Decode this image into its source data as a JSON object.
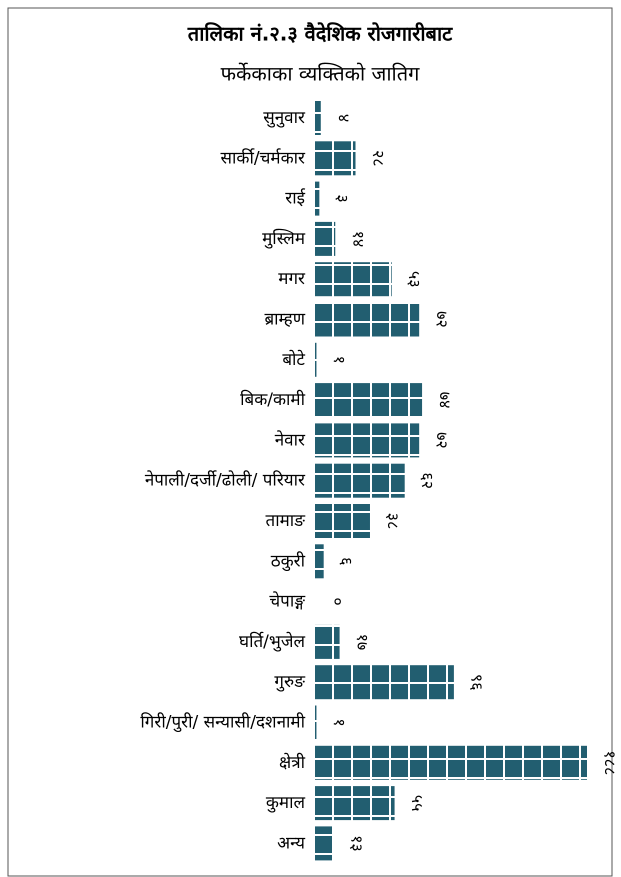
{
  "chart_data": {
    "type": "bar",
    "orientation": "horizontal",
    "title": "तालिका नं.२.३ वैदेशिक रोजगारीबाट",
    "subtitle": "फर्केकाका व्यक्तिको जातिग",
    "categories": [
      "सुनुवार",
      "सार्की/चर्मकार",
      "राई",
      "मुस्लिम",
      "मगर",
      "ब्राम्हण",
      "बोटे",
      "बिक/कामी",
      "नेवार",
      "नेपाली/दर्जी/ढोली/ परियार",
      "तामाङ",
      "ठकुरी",
      "चेपाङ्ग",
      "घर्ति/भुजेल",
      "गुरुङ",
      "गिरी/पुरी/ सन्यासी/दशनामी",
      "क्षेत्री",
      "कुमाल",
      "अन्य"
    ],
    "values": [
      4,
      28,
      3,
      14,
      53,
      72,
      1,
      74,
      72,
      62,
      38,
      6,
      0,
      17,
      96,
      1,
      188,
      55,
      13
    ],
    "value_labels": [
      "४",
      "२८",
      "३",
      "१४",
      "५३",
      "७२",
      "१",
      "७४",
      "७२",
      "६२",
      "३८",
      "६",
      "०",
      "१७",
      "९६",
      "१",
      "१८८",
      "५५",
      "१३"
    ],
    "color": "#225e70"
  }
}
